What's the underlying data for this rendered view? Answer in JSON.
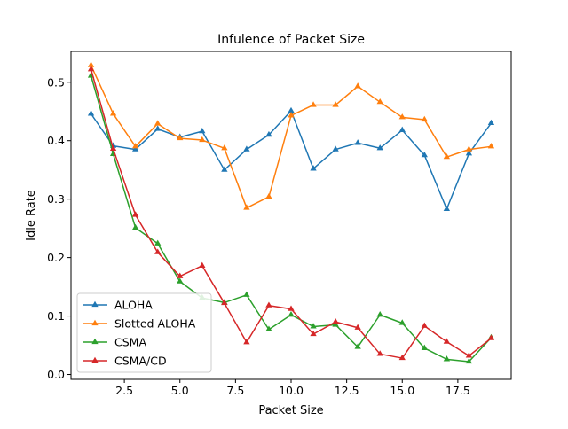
{
  "chart_data": {
    "type": "line",
    "title": "Infulence of Packet Size",
    "xlabel": "Packet Size",
    "ylabel": "Idle Rate",
    "xlim": [
      0.1,
      19.9
    ],
    "ylim": [
      -0.0083,
      0.5527
    ],
    "xticks": [
      2.5,
      5.0,
      7.5,
      10.0,
      12.5,
      15.0,
      17.5
    ],
    "xtick_labels": [
      "2.5",
      "5.0",
      "7.5",
      "10.0",
      "12.5",
      "15.0",
      "17.5"
    ],
    "yticks": [
      0.0,
      0.1,
      0.2,
      0.3,
      0.4,
      0.5
    ],
    "ytick_labels": [
      "0.0",
      "0.1",
      "0.2",
      "0.3",
      "0.4",
      "0.5"
    ],
    "grid": false,
    "legend_position": "lower-left",
    "marker": "triangle-up",
    "x": [
      1,
      2,
      3,
      4,
      5,
      6,
      7,
      8,
      9,
      10,
      11,
      12,
      13,
      14,
      15,
      16,
      17,
      18,
      19
    ],
    "series": [
      {
        "name": "ALOHA",
        "color": "#1f77b4",
        "values": [
          0.446,
          0.391,
          0.385,
          0.42,
          0.406,
          0.416,
          0.35,
          0.385,
          0.41,
          0.451,
          0.352,
          0.385,
          0.396,
          0.387,
          0.418,
          0.375,
          0.283,
          0.378,
          0.43
        ]
      },
      {
        "name": "Slotted ALOHA",
        "color": "#ff7f0e",
        "values": [
          0.529,
          0.446,
          0.39,
          0.429,
          0.404,
          0.401,
          0.387,
          0.285,
          0.304,
          0.443,
          0.461,
          0.461,
          0.493,
          0.466,
          0.44,
          0.436,
          0.372,
          0.385,
          0.39
        ]
      },
      {
        "name": "CSMA",
        "color": "#2ca02c",
        "values": [
          0.511,
          0.377,
          0.251,
          0.224,
          0.159,
          0.131,
          0.123,
          0.136,
          0.077,
          0.102,
          0.082,
          0.085,
          0.047,
          0.102,
          0.088,
          0.045,
          0.026,
          0.022,
          0.063
        ]
      },
      {
        "name": "CSMA/CD",
        "color": "#d62728",
        "values": [
          0.522,
          0.386,
          0.273,
          0.209,
          0.168,
          0.186,
          0.122,
          0.055,
          0.118,
          0.112,
          0.069,
          0.09,
          0.08,
          0.035,
          0.028,
          0.083,
          0.056,
          0.032,
          0.062
        ]
      }
    ]
  }
}
